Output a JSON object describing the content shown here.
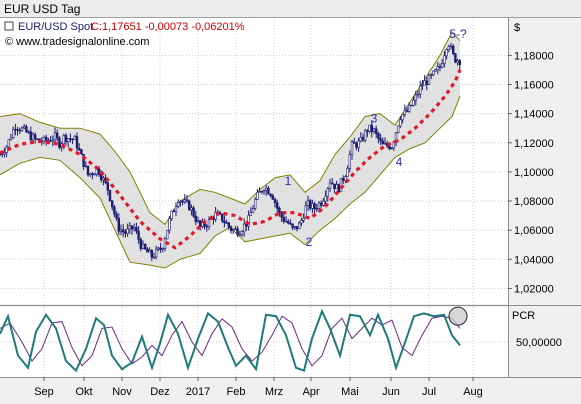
{
  "window": {
    "title": "EUR USD Tag"
  },
  "legend": {
    "symbol": "EUR/USD Spot",
    "value_text": "C:1,17651 -0,00073 -0,06201%",
    "source": "© www.tradesignalonline.com"
  },
  "colors": {
    "background": "#ffffff",
    "frame": "#f0f0f0",
    "candles": "#1a1a6e",
    "band_fill": "#dcdcdc",
    "band_line": "#808000",
    "middle_line": "#e01a2a",
    "pcr_main": "#1f7a7a",
    "pcr_signal": "#6a2a8a",
    "wave_labels": "#2a2ab0",
    "legend_value": "#cc0000"
  },
  "chart_data": [
    {
      "type": "line",
      "title": "",
      "instrument": "EUR/USD Spot",
      "y_axis_unit": "$",
      "ylim": [
        1.01,
        1.205
      ],
      "y_ticks": [
        "1,02000",
        "1,04000",
        "1,06000",
        "1,08000",
        "1,10000",
        "1,12000",
        "1,14000",
        "1,16000",
        "1,18000"
      ],
      "x_ticks": [
        "Sep",
        "Okt",
        "Nov",
        "Dez",
        "2017",
        "Feb",
        "Mrz",
        "Apr",
        "Mai",
        "Jun",
        "Jul",
        "Aug"
      ],
      "grid": true,
      "series": [
        {
          "style": "candlestick-band",
          "x": [
            0,
            7,
            15,
            25,
            35,
            45,
            55,
            60,
            64,
            75,
            88,
            98,
            108,
            118,
            125,
            134,
            142,
            152,
            162,
            170,
            178,
            190,
            200,
            208,
            215,
            222,
            232,
            240,
            248,
            256,
            264,
            272,
            280,
            288,
            293,
            300,
            307,
            314,
            322,
            330,
            338,
            346,
            352,
            360,
            368,
            374,
            382,
            392,
            400,
            408,
            415,
            422,
            430,
            440,
            448,
            454,
            460
          ],
          "close": [
            1.112,
            1.118,
            1.132,
            1.128,
            1.122,
            1.121,
            1.124,
            1.119,
            1.124,
            1.122,
            1.098,
            1.102,
            1.088,
            1.062,
            1.058,
            1.062,
            1.048,
            1.042,
            1.048,
            1.068,
            1.082,
            1.076,
            1.062,
            1.065,
            1.071,
            1.068,
            1.06,
            1.06,
            1.066,
            1.082,
            1.09,
            1.085,
            1.07,
            1.065,
            1.06,
            1.064,
            1.078,
            1.075,
            1.08,
            1.094,
            1.088,
            1.1,
            1.118,
            1.12,
            1.13,
            1.128,
            1.118,
            1.118,
            1.138,
            1.142,
            1.15,
            1.16,
            1.164,
            1.172,
            1.19,
            1.178,
            1.1765
          ]
        },
        {
          "name": "",
          "style": "dotted",
          "x": [
            0,
            20,
            40,
            60,
            80,
            100,
            120,
            140,
            160,
            175,
            190,
            205,
            220,
            235,
            250,
            265,
            280,
            295,
            310,
            325,
            340,
            355,
            370,
            385,
            400,
            415,
            430,
            445,
            455,
            460
          ],
          "values": [
            1.113,
            1.119,
            1.121,
            1.119,
            1.112,
            1.101,
            1.084,
            1.066,
            1.054,
            1.048,
            1.056,
            1.066,
            1.072,
            1.07,
            1.064,
            1.066,
            1.072,
            1.072,
            1.068,
            1.076,
            1.088,
            1.1,
            1.11,
            1.118,
            1.122,
            1.13,
            1.14,
            1.152,
            1.162,
            1.17
          ]
        },
        {
          "name": "",
          "style": "band-upper",
          "x": [
            0,
            20,
            40,
            60,
            80,
            100,
            115,
            130,
            150,
            165,
            180,
            200,
            215,
            230,
            245,
            260,
            275,
            290,
            305,
            320,
            335,
            350,
            365,
            380,
            395,
            410,
            425,
            440,
            452,
            460
          ],
          "values": [
            1.138,
            1.14,
            1.134,
            1.13,
            1.13,
            1.126,
            1.114,
            1.1,
            1.072,
            1.064,
            1.08,
            1.088,
            1.086,
            1.082,
            1.078,
            1.088,
            1.096,
            1.098,
            1.086,
            1.094,
            1.112,
            1.124,
            1.138,
            1.14,
            1.132,
            1.148,
            1.164,
            1.18,
            1.196,
            1.19
          ]
        },
        {
          "name": "",
          "style": "band-lower",
          "x": [
            0,
            20,
            40,
            60,
            80,
            100,
            115,
            130,
            150,
            165,
            180,
            200,
            215,
            230,
            245,
            260,
            275,
            290,
            305,
            320,
            335,
            350,
            365,
            380,
            395,
            410,
            425,
            440,
            452,
            460
          ],
          "values": [
            1.098,
            1.106,
            1.11,
            1.108,
            1.096,
            1.082,
            1.06,
            1.038,
            1.036,
            1.034,
            1.04,
            1.044,
            1.056,
            1.062,
            1.052,
            1.054,
            1.056,
            1.058,
            1.05,
            1.06,
            1.068,
            1.078,
            1.086,
            1.098,
            1.11,
            1.116,
            1.12,
            1.13,
            1.138,
            1.152
          ]
        }
      ],
      "annotations": [
        {
          "text": "1",
          "x": 288,
          "y": 1.091
        },
        {
          "text": "2",
          "x": 309,
          "y": 1.049
        },
        {
          "text": "3",
          "x": 374,
          "y": 1.134
        },
        {
          "text": "4",
          "x": 399,
          "y": 1.104
        },
        {
          "text": "5-?",
          "x": 458,
          "y": 1.192
        }
      ]
    },
    {
      "type": "line",
      "title": "",
      "indicator": "PCR",
      "ylim": [
        0,
        100
      ],
      "y_ticks": [
        "50,00000"
      ],
      "grid": true,
      "series": [
        {
          "name": "",
          "style": "main",
          "x": [
            0,
            8,
            18,
            28,
            36,
            46,
            56,
            66,
            76,
            86,
            96,
            104,
            112,
            122,
            132,
            142,
            152,
            160,
            168,
            178,
            188,
            198,
            208,
            218,
            228,
            236,
            246,
            256,
            266,
            276,
            286,
            296,
            304,
            312,
            322,
            330,
            340,
            350,
            360,
            370,
            378,
            388,
            396,
            404,
            414,
            424,
            434,
            444,
            452,
            460
          ],
          "values": [
            62,
            88,
            30,
            12,
            65,
            90,
            70,
            22,
            8,
            40,
            85,
            75,
            30,
            10,
            20,
            58,
            12,
            48,
            90,
            62,
            12,
            55,
            92,
            80,
            42,
            15,
            30,
            10,
            90,
            88,
            60,
            12,
            8,
            55,
            95,
            70,
            30,
            90,
            88,
            60,
            90,
            55,
            12,
            45,
            88,
            92,
            88,
            90,
            60,
            45
          ]
        },
        {
          "name": "",
          "style": "signal",
          "x": [
            0,
            10,
            22,
            32,
            42,
            52,
            62,
            72,
            82,
            92,
            102,
            112,
            122,
            132,
            142,
            152,
            162,
            172,
            182,
            192,
            202,
            212,
            222,
            232,
            242,
            252,
            262,
            272,
            282,
            292,
            302,
            312,
            322,
            332,
            342,
            352,
            362,
            372,
            382,
            392,
            402,
            412,
            422,
            432,
            442,
            452,
            460
          ],
          "values": [
            70,
            78,
            50,
            22,
            40,
            78,
            80,
            42,
            15,
            30,
            70,
            72,
            40,
            18,
            28,
            45,
            30,
            60,
            80,
            50,
            30,
            62,
            84,
            72,
            40,
            22,
            35,
            60,
            88,
            78,
            40,
            15,
            30,
            70,
            85,
            55,
            70,
            85,
            75,
            82,
            42,
            30,
            60,
            85,
            88,
            85,
            70
          ]
        }
      ],
      "annotations": [
        {
          "text": "",
          "shape": "circle",
          "x": 458,
          "y": 88
        }
      ]
    }
  ]
}
